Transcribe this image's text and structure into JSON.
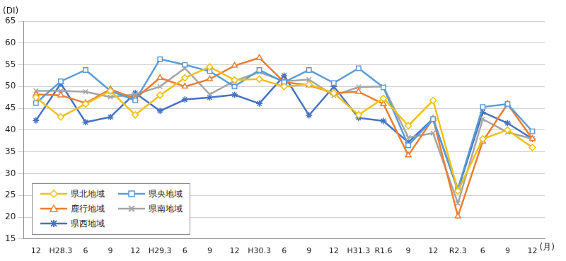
{
  "chart_data": {
    "type": "line",
    "y_label": "(DI)",
    "x_label": "(月)",
    "categories": [
      "12",
      "H28.3",
      "6",
      "9",
      "12",
      "H29.3",
      "6",
      "9",
      "12",
      "H30.3",
      "6",
      "9",
      "12",
      "H31.3",
      "R1.6",
      "9",
      "12",
      "R2.3",
      "6",
      "9",
      "12"
    ],
    "series": [
      {
        "name": "県北地域",
        "color": "#f2c014",
        "marker": "diamond",
        "values": [
          47.5,
          43,
          46,
          49,
          43.5,
          48,
          52,
          54.5,
          51.5,
          51.7,
          50,
          50.5,
          48.5,
          43.5,
          47.3,
          41,
          46.8,
          26,
          38,
          40,
          36
        ]
      },
      {
        "name": "県央地域",
        "color": "#5b9bd5",
        "marker": "square",
        "values": [
          46.2,
          51.2,
          53.8,
          49,
          46.8,
          56.3,
          55,
          53.5,
          50,
          53.8,
          51,
          53.8,
          50.8,
          54.2,
          49.8,
          36.5,
          42.5,
          26.5,
          45.3,
          46,
          39.7
        ]
      },
      {
        "name": "鹿行地域",
        "color": "#ed7d31",
        "marker": "triangle",
        "values": [
          48.2,
          48,
          46.2,
          49.4,
          47.2,
          52,
          50,
          51.7,
          54.8,
          56.6,
          51,
          50.3,
          48.5,
          48.8,
          46,
          34.2,
          42.6,
          20.2,
          37.4,
          46,
          38
        ]
      },
      {
        "name": "県南地域",
        "color": "#a5a5a5",
        "marker": "x",
        "values": [
          49,
          49,
          48.8,
          47.6,
          48.2,
          50,
          54.2,
          48.2,
          51.3,
          53.3,
          51.2,
          51.6,
          47.9,
          49.9,
          50,
          38.3,
          39.3,
          23.2,
          42.5,
          39.5,
          38
        ]
      },
      {
        "name": "県西地域",
        "color": "#4472c4",
        "marker": "star",
        "values": [
          42.2,
          50.7,
          41.8,
          43,
          48.5,
          44.4,
          47,
          47.5,
          48.1,
          46.1,
          52.5,
          43.4,
          50,
          42.8,
          42.1,
          37.2,
          42.6,
          26.2,
          44.1,
          41.6,
          38
        ]
      }
    ],
    "ylim": [
      15,
      65
    ],
    "yticks": [
      15,
      20,
      25,
      30,
      35,
      40,
      45,
      50,
      55,
      60,
      65
    ],
    "grid": true,
    "legend": "lower left"
  }
}
